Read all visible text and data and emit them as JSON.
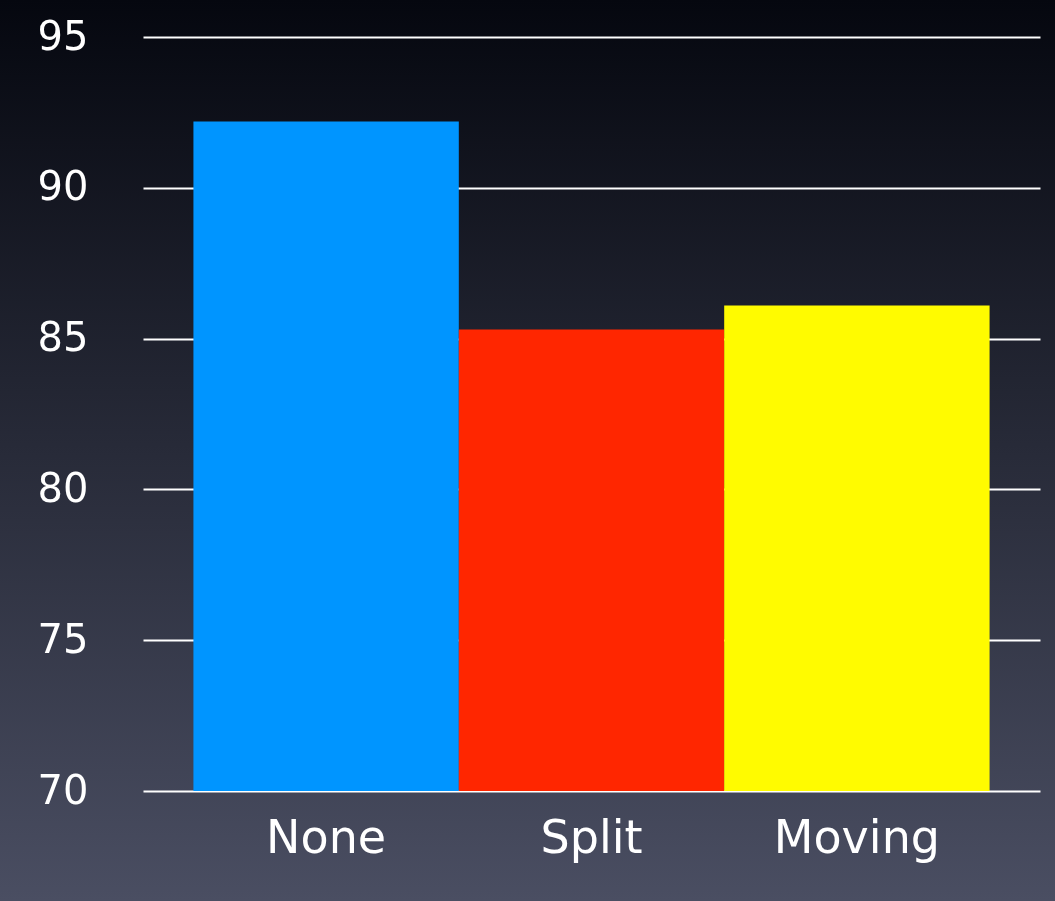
{
  "chart_data": {
    "type": "bar",
    "categories": [
      "None",
      "Split",
      "Moving"
    ],
    "values": [
      92.2,
      85.3,
      86.1
    ],
    "colors": [
      "#0095ff",
      "#ff2600",
      "#fffb00"
    ],
    "ylim": [
      70,
      95
    ],
    "yticks": [
      70,
      75,
      80,
      85,
      90,
      95
    ],
    "grid": "y"
  }
}
